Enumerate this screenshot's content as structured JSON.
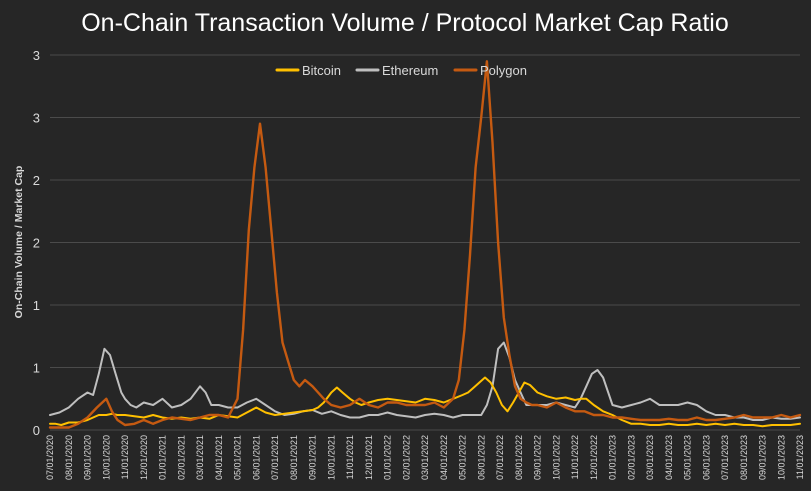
{
  "chart_data": {
    "type": "line",
    "title": "On-Chain Transaction Volume / Protocol Market Cap Ratio",
    "xlabel": "",
    "ylabel": "On-Chain Volume / Market Cap",
    "ylim": [
      0,
      3
    ],
    "y_ticks": [
      0,
      0.5,
      1,
      1.5,
      2,
      2.5,
      3
    ],
    "y_tick_labels": [
      "0",
      "1",
      "1",
      "2",
      "2",
      "3",
      "3"
    ],
    "grid": true,
    "legend": "top-center",
    "categories": [
      "07/01/2020",
      "08/01/2020",
      "09/01/2020",
      "10/01/2020",
      "11/01/2020",
      "12/01/2020",
      "01/01/2021",
      "02/01/2021",
      "03/01/2021",
      "04/01/2021",
      "05/01/2021",
      "06/01/2021",
      "07/01/2021",
      "08/01/2021",
      "09/01/2021",
      "10/01/2021",
      "11/01/2021",
      "12/01/2021",
      "01/01/2022",
      "02/01/2022",
      "03/01/2022",
      "04/01/2022",
      "05/01/2022",
      "06/01/2022",
      "07/01/2022",
      "08/01/2022",
      "09/01/2022",
      "10/01/2022",
      "11/01/2022",
      "12/01/2022",
      "01/01/2023",
      "02/01/2023",
      "03/01/2023",
      "04/01/2023",
      "05/01/2023",
      "06/01/2023",
      "07/01/2023",
      "08/01/2023",
      "09/01/2023",
      "10/01/2023",
      "11/01/2023"
    ],
    "series": [
      {
        "name": "Bitcoin",
        "color": "#FFC000",
        "x": [
          0,
          0.3,
          0.6,
          1,
          1.5,
          2,
          2.3,
          2.6,
          3,
          3.3,
          3.6,
          4,
          4.5,
          5,
          5.5,
          6,
          6.5,
          7,
          7.5,
          8,
          8.5,
          9,
          9.5,
          10,
          10.5,
          11,
          11.5,
          12,
          12.5,
          13,
          13.5,
          14,
          14.3,
          14.6,
          15,
          15.3,
          15.6,
          16,
          16.3,
          16.6,
          17,
          17.5,
          18,
          18.5,
          19,
          19.5,
          20,
          20.5,
          21,
          21.5,
          22,
          22.3,
          22.6,
          22.9,
          23.2,
          23.5,
          23.8,
          24.1,
          24.4,
          24.7,
          25,
          25.3,
          25.6,
          26,
          26.5,
          27,
          27.5,
          28,
          28.3,
          28.6,
          29,
          29.5,
          30,
          30.5,
          31,
          31.5,
          32,
          32.5,
          33,
          33.5,
          34,
          34.5,
          35,
          35.5,
          36,
          36.5,
          37,
          37.5,
          38,
          38.5,
          39,
          39.5,
          40
        ],
        "values": [
          0.05,
          0.05,
          0.04,
          0.06,
          0.06,
          0.08,
          0.1,
          0.12,
          0.12,
          0.13,
          0.12,
          0.12,
          0.11,
          0.1,
          0.12,
          0.1,
          0.09,
          0.1,
          0.09,
          0.1,
          0.09,
          0.12,
          0.11,
          0.1,
          0.14,
          0.18,
          0.14,
          0.12,
          0.13,
          0.14,
          0.15,
          0.16,
          0.18,
          0.22,
          0.3,
          0.34,
          0.3,
          0.25,
          0.22,
          0.2,
          0.22,
          0.24,
          0.25,
          0.24,
          0.23,
          0.22,
          0.25,
          0.24,
          0.22,
          0.25,
          0.28,
          0.3,
          0.34,
          0.38,
          0.42,
          0.38,
          0.3,
          0.2,
          0.15,
          0.22,
          0.3,
          0.38,
          0.36,
          0.3,
          0.27,
          0.25,
          0.26,
          0.24,
          0.25,
          0.25,
          0.2,
          0.15,
          0.12,
          0.08,
          0.05,
          0.05,
          0.04,
          0.04,
          0.05,
          0.04,
          0.04,
          0.05,
          0.04,
          0.05,
          0.04,
          0.05,
          0.04,
          0.04,
          0.03,
          0.04,
          0.04,
          0.04,
          0.05
        ]
      },
      {
        "name": "Ethereum",
        "color": "#BFBFBF",
        "x": [
          0,
          0.5,
          1,
          1.5,
          2,
          2.3,
          2.6,
          2.9,
          3.2,
          3.5,
          3.8,
          4,
          4.3,
          4.6,
          5,
          5.5,
          6,
          6.5,
          7,
          7.5,
          8,
          8.3,
          8.6,
          9,
          9.5,
          10,
          10.5,
          11,
          11.5,
          12,
          12.5,
          13,
          13.5,
          14,
          14.5,
          15,
          15.5,
          16,
          16.5,
          17,
          17.5,
          18,
          18.5,
          19,
          19.5,
          20,
          20.5,
          21,
          21.5,
          22,
          22.5,
          23,
          23.3,
          23.6,
          23.9,
          24.2,
          24.5,
          24.8,
          25.1,
          25.4,
          25.7,
          26,
          26.5,
          27,
          27.5,
          28,
          28.3,
          28.6,
          28.9,
          29.2,
          29.5,
          30,
          30.5,
          31,
          31.5,
          32,
          32.5,
          33,
          33.5,
          34,
          34.5,
          35,
          35.5,
          36,
          36.5,
          37,
          37.5,
          38,
          38.5,
          39,
          39.5,
          40
        ],
        "values": [
          0.12,
          0.14,
          0.18,
          0.25,
          0.3,
          0.28,
          0.45,
          0.65,
          0.6,
          0.45,
          0.3,
          0.25,
          0.2,
          0.18,
          0.22,
          0.2,
          0.25,
          0.18,
          0.2,
          0.25,
          0.35,
          0.3,
          0.2,
          0.2,
          0.18,
          0.18,
          0.22,
          0.25,
          0.2,
          0.15,
          0.12,
          0.13,
          0.15,
          0.16,
          0.13,
          0.15,
          0.12,
          0.1,
          0.1,
          0.12,
          0.12,
          0.14,
          0.12,
          0.11,
          0.1,
          0.12,
          0.13,
          0.12,
          0.1,
          0.12,
          0.12,
          0.12,
          0.2,
          0.35,
          0.65,
          0.7,
          0.58,
          0.4,
          0.3,
          0.2,
          0.2,
          0.2,
          0.2,
          0.22,
          0.2,
          0.18,
          0.25,
          0.35,
          0.45,
          0.48,
          0.42,
          0.2,
          0.18,
          0.2,
          0.22,
          0.25,
          0.2,
          0.2,
          0.2,
          0.22,
          0.2,
          0.15,
          0.12,
          0.12,
          0.1,
          0.1,
          0.08,
          0.08,
          0.1,
          0.09,
          0.09,
          0.1
        ]
      },
      {
        "name": "Polygon",
        "color": "#C55A11",
        "x": [
          0,
          1,
          1.5,
          2,
          2.5,
          3,
          3.3,
          3.6,
          4,
          4.5,
          5,
          5.5,
          6,
          6.5,
          7,
          7.5,
          8,
          8.5,
          9,
          9.5,
          10,
          10.3,
          10.6,
          10.9,
          11.2,
          11.5,
          11.8,
          12.1,
          12.4,
          12.7,
          13,
          13.3,
          13.6,
          14,
          14.3,
          14.6,
          15,
          15.5,
          16,
          16.5,
          17,
          17.5,
          18,
          18.5,
          19,
          19.5,
          20,
          20.5,
          21,
          21.5,
          21.8,
          22.1,
          22.4,
          22.7,
          23,
          23.3,
          23.6,
          23.9,
          24.2,
          24.5,
          24.8,
          25.1,
          25.4,
          25.7,
          26,
          26.5,
          27,
          27.5,
          28,
          28.5,
          29,
          29.5,
          30,
          30.5,
          31,
          31.5,
          32,
          32.5,
          33,
          33.5,
          34,
          34.5,
          35,
          35.5,
          36,
          36.5,
          37,
          37.5,
          38,
          38.5,
          39,
          39.5,
          40
        ],
        "values": [
          0.02,
          0.02,
          0.05,
          0.1,
          0.18,
          0.25,
          0.15,
          0.08,
          0.04,
          0.05,
          0.08,
          0.05,
          0.08,
          0.1,
          0.09,
          0.08,
          0.1,
          0.12,
          0.12,
          0.1,
          0.25,
          0.8,
          1.6,
          2.1,
          2.45,
          2.1,
          1.6,
          1.1,
          0.7,
          0.55,
          0.4,
          0.35,
          0.4,
          0.35,
          0.3,
          0.25,
          0.2,
          0.18,
          0.2,
          0.25,
          0.2,
          0.18,
          0.22,
          0.22,
          0.2,
          0.2,
          0.2,
          0.22,
          0.18,
          0.25,
          0.4,
          0.8,
          1.4,
          2.1,
          2.5,
          2.95,
          2.3,
          1.5,
          0.9,
          0.6,
          0.35,
          0.25,
          0.22,
          0.2,
          0.2,
          0.18,
          0.22,
          0.18,
          0.15,
          0.15,
          0.12,
          0.12,
          0.1,
          0.1,
          0.09,
          0.08,
          0.08,
          0.08,
          0.09,
          0.08,
          0.08,
          0.1,
          0.08,
          0.08,
          0.09,
          0.1,
          0.12,
          0.1,
          0.1,
          0.1,
          0.12,
          0.1,
          0.12
        ]
      }
    ]
  }
}
